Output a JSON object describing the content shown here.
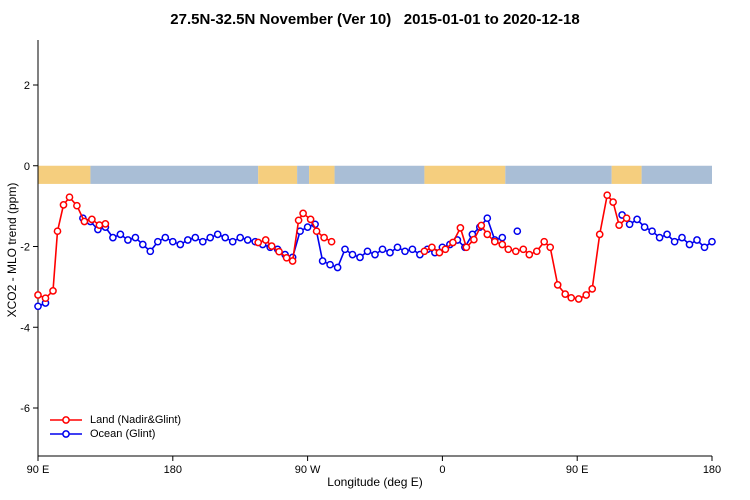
{
  "chart_data": {
    "type": "line",
    "title": "27.5N-32.5N November (Ver 10)   2015-01-01 to 2020-12-18",
    "xlabel": "Longitude (deg E)",
    "ylabel": "XCO2 - MLO trend (ppm)",
    "xlim": [
      90,
      540
    ],
    "ylim": [
      -7.2,
      3.1
    ],
    "grid": false,
    "x_ticks": [
      {
        "value": 90,
        "label": "90 E"
      },
      {
        "value": 180,
        "label": "180"
      },
      {
        "value": 270,
        "label": "90 W"
      },
      {
        "value": 360,
        "label": "0"
      },
      {
        "value": 450,
        "label": "90 E"
      },
      {
        "value": 540,
        "label": "180"
      }
    ],
    "y_ticks": [
      {
        "value": 2,
        "label": "2"
      },
      {
        "value": 0,
        "label": "0"
      },
      {
        "value": -2,
        "label": "-2"
      },
      {
        "value": -4,
        "label": "-4"
      },
      {
        "value": -6,
        "label": "-6"
      }
    ],
    "surface_band": {
      "description": "land (orange) / ocean (blue) surface-type strip",
      "value_top": 0.0,
      "value_bottom": -0.45,
      "colors": {
        "land": "#F5CE7E",
        "ocean": "#A9BED6"
      },
      "segments": [
        {
          "from": 90,
          "to": 125,
          "type": "land"
        },
        {
          "from": 125,
          "to": 237,
          "type": "ocean"
        },
        {
          "from": 237,
          "to": 263,
          "type": "land"
        },
        {
          "from": 263,
          "to": 271,
          "type": "ocean"
        },
        {
          "from": 271,
          "to": 288,
          "type": "land"
        },
        {
          "from": 288,
          "to": 348,
          "type": "ocean"
        },
        {
          "from": 348,
          "to": 402,
          "type": "land"
        },
        {
          "from": 402,
          "to": 473,
          "type": "ocean"
        },
        {
          "from": 473,
          "to": 493,
          "type": "land"
        },
        {
          "from": 493,
          "to": 540,
          "type": "ocean"
        }
      ]
    },
    "legend": {
      "position": "bottom-left"
    },
    "series": [
      {
        "name": "Land (Nadir&Glint)",
        "color": "#FF0000",
        "points": [
          [
            90,
            -3.2
          ],
          [
            95,
            -3.28
          ],
          [
            100,
            -3.1
          ],
          [
            103,
            -1.62
          ],
          [
            107,
            -0.97
          ],
          [
            111,
            -0.78
          ],
          [
            116,
            -0.99
          ],
          [
            121,
            -1.38
          ],
          [
            126,
            -1.33
          ],
          [
            131,
            -1.47
          ],
          [
            135,
            -1.44
          ],
          [
            237,
            -1.9
          ],
          [
            242,
            -1.84
          ],
          [
            246,
            -1.99
          ],
          [
            251,
            -2.13
          ],
          [
            256,
            -2.28
          ],
          [
            260,
            -2.36
          ],
          [
            264,
            -1.35
          ],
          [
            267,
            -1.18
          ],
          [
            272,
            -1.33
          ],
          [
            276,
            -1.62
          ],
          [
            281,
            -1.78
          ],
          [
            286,
            -1.88
          ],
          [
            348,
            -2.12
          ],
          [
            353,
            -2.02
          ],
          [
            358,
            -2.15
          ],
          [
            362,
            -2.07
          ],
          [
            367,
            -1.9
          ],
          [
            372,
            -1.54
          ],
          [
            376,
            -2.02
          ],
          [
            381,
            -1.83
          ],
          [
            386,
            -1.48
          ],
          [
            390,
            -1.7
          ],
          [
            395,
            -1.88
          ],
          [
            400,
            -1.95
          ],
          [
            404,
            -2.07
          ],
          [
            409,
            -2.12
          ],
          [
            414,
            -2.07
          ],
          [
            418,
            -2.2
          ],
          [
            423,
            -2.12
          ],
          [
            428,
            -1.88
          ],
          [
            432,
            -2.02
          ],
          [
            437,
            -2.95
          ],
          [
            442,
            -3.18
          ],
          [
            446,
            -3.27
          ],
          [
            451,
            -3.3
          ],
          [
            456,
            -3.2
          ],
          [
            460,
            -3.05
          ],
          [
            465,
            -1.7
          ],
          [
            470,
            -0.73
          ],
          [
            474,
            -0.9
          ],
          [
            478,
            -1.47
          ],
          [
            483,
            -1.3
          ]
        ]
      },
      {
        "name": "Ocean (Glint)",
        "color": "#0000EE",
        "points": [
          [
            90,
            -3.48
          ],
          [
            95,
            -3.4
          ],
          [
            120,
            -1.3
          ],
          [
            125,
            -1.38
          ],
          [
            130,
            -1.58
          ],
          [
            135,
            -1.52
          ],
          [
            140,
            -1.78
          ],
          [
            145,
            -1.7
          ],
          [
            150,
            -1.84
          ],
          [
            155,
            -1.78
          ],
          [
            160,
            -1.95
          ],
          [
            165,
            -2.12
          ],
          [
            170,
            -1.88
          ],
          [
            175,
            -1.78
          ],
          [
            180,
            -1.88
          ],
          [
            185,
            -1.95
          ],
          [
            190,
            -1.84
          ],
          [
            195,
            -1.78
          ],
          [
            200,
            -1.88
          ],
          [
            205,
            -1.78
          ],
          [
            210,
            -1.7
          ],
          [
            215,
            -1.78
          ],
          [
            220,
            -1.88
          ],
          [
            225,
            -1.78
          ],
          [
            230,
            -1.84
          ],
          [
            235,
            -1.88
          ],
          [
            240,
            -1.95
          ],
          [
            245,
            -2.02
          ],
          [
            250,
            -2.07
          ],
          [
            255,
            -2.2
          ],
          [
            260,
            -2.27
          ],
          [
            265,
            -1.62
          ],
          [
            270,
            -1.52
          ],
          [
            275,
            -1.45
          ],
          [
            280,
            -2.36
          ],
          [
            285,
            -2.45
          ],
          [
            290,
            -2.52
          ],
          [
            295,
            -2.07
          ],
          [
            300,
            -2.2
          ],
          [
            305,
            -2.27
          ],
          [
            310,
            -2.12
          ],
          [
            315,
            -2.2
          ],
          [
            320,
            -2.07
          ],
          [
            325,
            -2.15
          ],
          [
            330,
            -2.02
          ],
          [
            335,
            -2.12
          ],
          [
            340,
            -2.07
          ],
          [
            345,
            -2.2
          ],
          [
            350,
            -2.07
          ],
          [
            355,
            -2.15
          ],
          [
            360,
            -2.02
          ],
          [
            365,
            -1.95
          ],
          [
            370,
            -1.84
          ],
          [
            375,
            -2.02
          ],
          [
            380,
            -1.7
          ],
          [
            385,
            -1.52
          ],
          [
            390,
            -1.3
          ],
          [
            395,
            -1.84
          ],
          [
            400,
            -1.78
          ],
          [
            410,
            -1.62
          ],
          [
            480,
            -1.22
          ],
          [
            485,
            -1.45
          ],
          [
            490,
            -1.33
          ],
          [
            495,
            -1.52
          ],
          [
            500,
            -1.62
          ],
          [
            505,
            -1.78
          ],
          [
            510,
            -1.7
          ],
          [
            515,
            -1.88
          ],
          [
            520,
            -1.78
          ],
          [
            525,
            -1.95
          ],
          [
            530,
            -1.84
          ],
          [
            535,
            -2.02
          ],
          [
            540,
            -1.88
          ]
        ]
      }
    ]
  }
}
